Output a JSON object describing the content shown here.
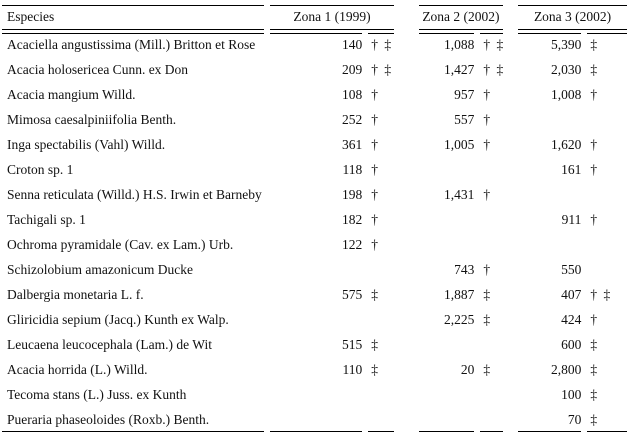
{
  "chart_data": {
    "type": "table",
    "headers": [
      "Especies",
      "Zona 1 (1999)",
      "Zona 2 (2002)",
      "Zona 3 (2002)"
    ],
    "symbols_used": [
      "†",
      "‡"
    ],
    "rows": [
      {
        "especies": "Acaciella angustissima (Mill.) Britton et Rose",
        "zona1": "140",
        "zona1_sym": "† ‡",
        "zona2": "1,088",
        "zona2_sym": "† ‡",
        "zona3": "5,390",
        "zona3_sym": "‡"
      },
      {
        "especies": "Acacia holosericea Cunn. ex Don",
        "zona1": "209",
        "zona1_sym": "† ‡",
        "zona2": "1,427",
        "zona2_sym": "† ‡",
        "zona3": "2,030",
        "zona3_sym": "‡"
      },
      {
        "especies": "Acacia mangium Willd.",
        "zona1": "108",
        "zona1_sym": "†",
        "zona2": "957",
        "zona2_sym": "†",
        "zona3": "1,008",
        "zona3_sym": "†"
      },
      {
        "especies": "Mimosa caesalpiniifolia Benth.",
        "zona1": "252",
        "zona1_sym": "†",
        "zona2": "557",
        "zona2_sym": "†",
        "zona3": "",
        "zona3_sym": ""
      },
      {
        "especies": "Inga spectabilis (Vahl) Willd.",
        "zona1": "361",
        "zona1_sym": "†",
        "zona2": "1,005",
        "zona2_sym": "†",
        "zona3": "1,620",
        "zona3_sym": "†"
      },
      {
        "especies": "Croton sp. 1",
        "zona1": "118",
        "zona1_sym": "†",
        "zona2": "",
        "zona2_sym": "",
        "zona3": "161",
        "zona3_sym": "†"
      },
      {
        "especies": "Senna reticulata (Willd.) H.S. Irwin et Barneby",
        "zona1": "198",
        "zona1_sym": "†",
        "zona2": "1,431",
        "zona2_sym": "†",
        "zona3": "",
        "zona3_sym": ""
      },
      {
        "especies": "Tachigali sp. 1",
        "zona1": "182",
        "zona1_sym": "†",
        "zona2": "",
        "zona2_sym": "",
        "zona3": "911",
        "zona3_sym": "†"
      },
      {
        "especies": "Ochroma pyramidale (Cav. ex Lam.) Urb.",
        "zona1": "122",
        "zona1_sym": "†",
        "zona2": "",
        "zona2_sym": "",
        "zona3": "",
        "zona3_sym": ""
      },
      {
        "especies": "Schizolobium amazonicum Ducke",
        "zona1": "",
        "zona1_sym": "",
        "zona2": "743",
        "zona2_sym": "†",
        "zona3": "550",
        "zona3_sym": ""
      },
      {
        "especies": "Dalbergia monetaria L. f.",
        "zona1": "575",
        "zona1_sym": "‡",
        "zona2": "1,887",
        "zona2_sym": "‡",
        "zona3": "407",
        "zona3_sym": "† ‡"
      },
      {
        "especies": "Gliricidia sepium (Jacq.) Kunth ex Walp.",
        "zona1": "",
        "zona1_sym": "",
        "zona2": "2,225",
        "zona2_sym": "‡",
        "zona3": "424",
        "zona3_sym": "†"
      },
      {
        "especies": "Leucaena leucocephala (Lam.) de Wit",
        "zona1": "515",
        "zona1_sym": "‡",
        "zona2": "",
        "zona2_sym": "",
        "zona3": "600",
        "zona3_sym": "‡"
      },
      {
        "especies": "Acacia horrida (L.) Willd.",
        "zona1": "110",
        "zona1_sym": "‡",
        "zona2": "20",
        "zona2_sym": "‡",
        "zona3": "2,800",
        "zona3_sym": "‡"
      },
      {
        "especies": "Tecoma stans (L.) Juss. ex Kunth",
        "zona1": "",
        "zona1_sym": "",
        "zona2": "",
        "zona2_sym": "",
        "zona3": "100",
        "zona3_sym": "‡"
      },
      {
        "especies": "Pueraria phaseoloides (Roxb.) Benth.",
        "zona1": "",
        "zona1_sym": "",
        "zona2": "",
        "zona2_sym": "",
        "zona3": "70",
        "zona3_sym": "‡"
      }
    ]
  }
}
